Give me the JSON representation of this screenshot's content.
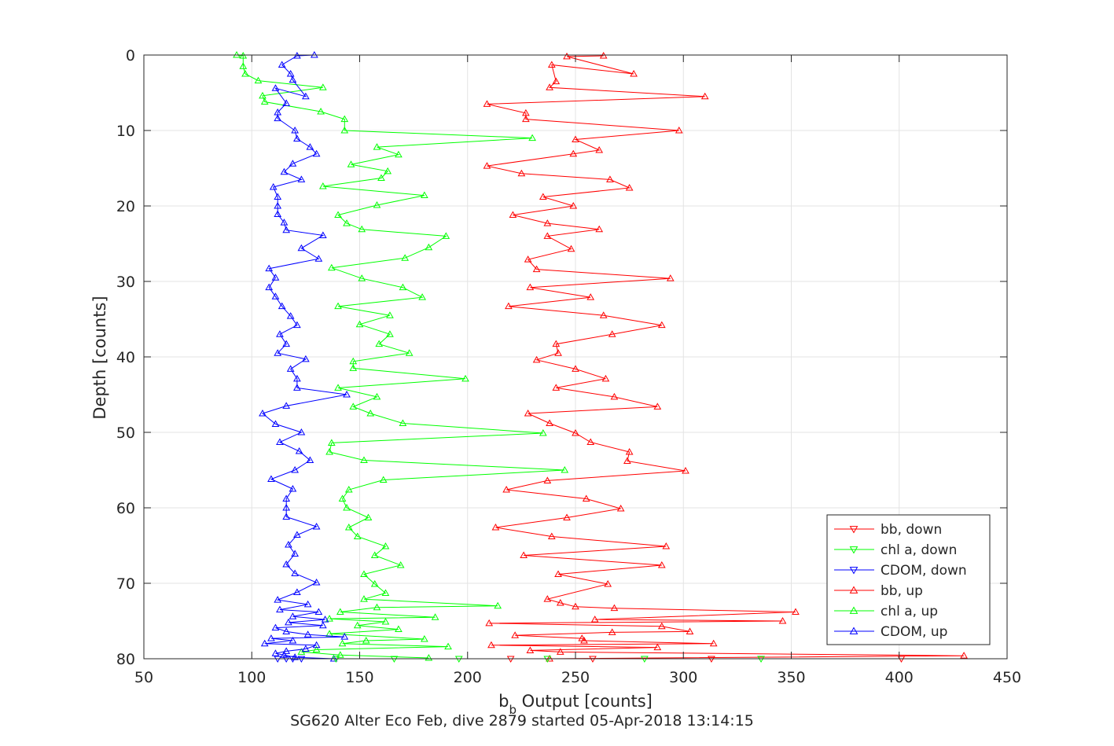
{
  "chart_data": {
    "type": "line",
    "title": "SG620 Alter Eco Feb, dive 2879 started 05-Apr-2018 13:14:15",
    "xlabel_main": "b",
    "xlabel_sub": "b",
    "xlabel_rest": " Output [counts]",
    "ylabel": "Depth [counts]",
    "xlim": [
      50,
      450
    ],
    "ylim": [
      0,
      80
    ],
    "y_reversed": true,
    "grid": true,
    "xticks": [
      50,
      100,
      150,
      200,
      250,
      300,
      350,
      400,
      450
    ],
    "yticks": [
      0,
      10,
      20,
      30,
      40,
      50,
      60,
      70,
      80
    ],
    "legend_position": "bottom-right",
    "series": [
      {
        "name": "bb, down",
        "color": "#ff0000",
        "marker": "triangle-down",
        "x": [
          401,
          313,
          258,
          220
        ],
        "y": [
          80,
          80,
          80,
          80
        ]
      },
      {
        "name": "chl a, down",
        "color": "#00ff00",
        "marker": "triangle-down",
        "x": [
          336,
          282,
          237,
          196,
          166,
          139
        ],
        "y": [
          80,
          80,
          80,
          80,
          80,
          80
        ]
      },
      {
        "name": "CDOM, down",
        "color": "#0000ff",
        "marker": "triangle-down",
        "x": [
          123,
          119,
          116,
          112
        ],
        "y": [
          80,
          80,
          80,
          80
        ]
      },
      {
        "name": "bb, up",
        "color": "#ff0000",
        "marker": "triangle-up",
        "x": [
          263,
          246,
          277,
          239,
          241,
          238,
          310,
          209,
          227,
          227,
          298,
          250,
          261,
          249,
          209,
          225,
          266,
          275,
          235,
          249,
          221,
          237,
          261,
          237,
          248,
          228,
          232,
          294,
          229,
          257,
          219,
          263,
          290,
          267,
          241,
          242,
          232,
          250,
          264,
          241,
          268,
          288,
          228,
          238,
          250,
          257,
          275,
          274,
          301,
          237,
          218,
          255,
          271,
          246,
          213,
          239,
          292,
          226,
          290,
          242,
          265,
          237,
          243,
          250,
          268,
          352,
          259,
          346,
          210,
          290,
          303,
          267,
          222,
          253,
          254,
          314,
          211,
          288,
          229,
          243,
          430,
          238
        ],
        "y": [
          0.1,
          0.2,
          2.5,
          1.3,
          3.5,
          4.3,
          5.5,
          6.5,
          7.7,
          8.5,
          10.0,
          11.2,
          12.6,
          13.1,
          14.7,
          15.7,
          16.5,
          17.6,
          18.8,
          20.0,
          21.2,
          22.3,
          23.1,
          24.0,
          25.7,
          27.1,
          28.4,
          29.6,
          30.8,
          32.1,
          33.3,
          34.5,
          35.8,
          37.0,
          38.3,
          39.5,
          40.4,
          41.6,
          42.9,
          44.1,
          45.3,
          46.6,
          47.5,
          48.8,
          50.1,
          51.3,
          52.6,
          53.8,
          55.1,
          56.4,
          57.6,
          58.8,
          60.1,
          61.3,
          62.6,
          63.8,
          65.1,
          66.3,
          67.6,
          68.8,
          70.1,
          72.1,
          72.6,
          73.1,
          73.3,
          73.8,
          74.8,
          75.0,
          75.3,
          75.7,
          76.4,
          76.5,
          76.9,
          77.3,
          77.6,
          78.0,
          78.2,
          78.5,
          78.9,
          79.1,
          79.6,
          80.0
        ]
      },
      {
        "name": "chl a, up",
        "color": "#00ff00",
        "marker": "triangle-up",
        "x": [
          93,
          96,
          96,
          97,
          103,
          133,
          105,
          106,
          132,
          143,
          143,
          230,
          158,
          168,
          146,
          163,
          160,
          133,
          180,
          158,
          140,
          144,
          151,
          190,
          182,
          171,
          137,
          151,
          170,
          179,
          140,
          164,
          150,
          164,
          159,
          173,
          147,
          147,
          199,
          140,
          158,
          147,
          155,
          170,
          235,
          137,
          136,
          152,
          245,
          161,
          145,
          142,
          144,
          154,
          145,
          149,
          162,
          157,
          169,
          152,
          157,
          162,
          152,
          214,
          158,
          141,
          185,
          136,
          162,
          149,
          168,
          136,
          180,
          153,
          142,
          191,
          130,
          123,
          141,
          182
        ],
        "y": [
          0,
          0.1,
          1.5,
          2.5,
          3.4,
          4.3,
          5.4,
          6.2,
          7.5,
          8.5,
          10.0,
          11.0,
          12.2,
          13.2,
          14.5,
          15.4,
          16.3,
          17.4,
          18.6,
          19.9,
          21.2,
          22.3,
          23.1,
          24.0,
          25.5,
          26.9,
          28.2,
          29.6,
          30.8,
          32.1,
          33.3,
          34.5,
          35.7,
          37.0,
          38.3,
          39.5,
          40.6,
          41.5,
          42.9,
          44.1,
          45.3,
          46.6,
          47.5,
          48.8,
          50.1,
          51.4,
          52.6,
          53.7,
          55.0,
          56.3,
          57.6,
          58.8,
          60.0,
          61.3,
          62.6,
          63.8,
          65.1,
          66.3,
          67.6,
          68.8,
          70.1,
          71.3,
          72.1,
          73.0,
          73.2,
          73.8,
          74.5,
          74.7,
          75.1,
          75.6,
          76.1,
          76.7,
          77.4,
          77.6,
          78.0,
          78.4,
          78.8,
          79.1,
          79.5,
          79.9
        ]
      },
      {
        "name": "CDOM, up",
        "color": "#0000ff",
        "marker": "triangle-up",
        "x": [
          129,
          121,
          114,
          118,
          119,
          125,
          111,
          116,
          112,
          112,
          120,
          121,
          127,
          130,
          119,
          115,
          123,
          110,
          112,
          112,
          112,
          115,
          116,
          133,
          123,
          131,
          108,
          111,
          108,
          111,
          114,
          118,
          121,
          113,
          116,
          112,
          125,
          118,
          121,
          121,
          144,
          116,
          105,
          111,
          123,
          113,
          122,
          127,
          120,
          109,
          119,
          116,
          116,
          116,
          130,
          121,
          117,
          120,
          116,
          120,
          130,
          121,
          112,
          126,
          113,
          131,
          119,
          134,
          117,
          133,
          111,
          116,
          126,
          143,
          109,
          119,
          106,
          130,
          125,
          116,
          111,
          115,
          120,
          138
        ],
        "y": [
          0.0,
          0.1,
          1.3,
          2.5,
          3.3,
          5.5,
          4.4,
          6.4,
          7.6,
          8.4,
          10.0,
          11.1,
          12.2,
          13.1,
          14.4,
          15.5,
          16.5,
          17.5,
          18.8,
          20.0,
          21.1,
          22.2,
          23.2,
          23.9,
          25.6,
          27.0,
          28.3,
          29.5,
          30.8,
          32.0,
          33.3,
          34.6,
          35.8,
          37.0,
          38.3,
          39.5,
          40.3,
          41.6,
          42.9,
          44.1,
          45.0,
          46.5,
          47.5,
          48.9,
          50.0,
          51.3,
          52.5,
          53.7,
          55.0,
          56.2,
          57.5,
          58.8,
          60.0,
          61.2,
          62.5,
          63.6,
          64.9,
          66.1,
          67.5,
          68.7,
          69.9,
          71.2,
          72.2,
          72.8,
          73.5,
          73.8,
          74.4,
          74.8,
          75.2,
          75.6,
          75.9,
          76.4,
          76.8,
          77.1,
          77.3,
          77.6,
          78.0,
          78.2,
          78.7,
          79.0,
          79.3,
          79.5,
          79.8,
          80.0
        ]
      }
    ]
  }
}
